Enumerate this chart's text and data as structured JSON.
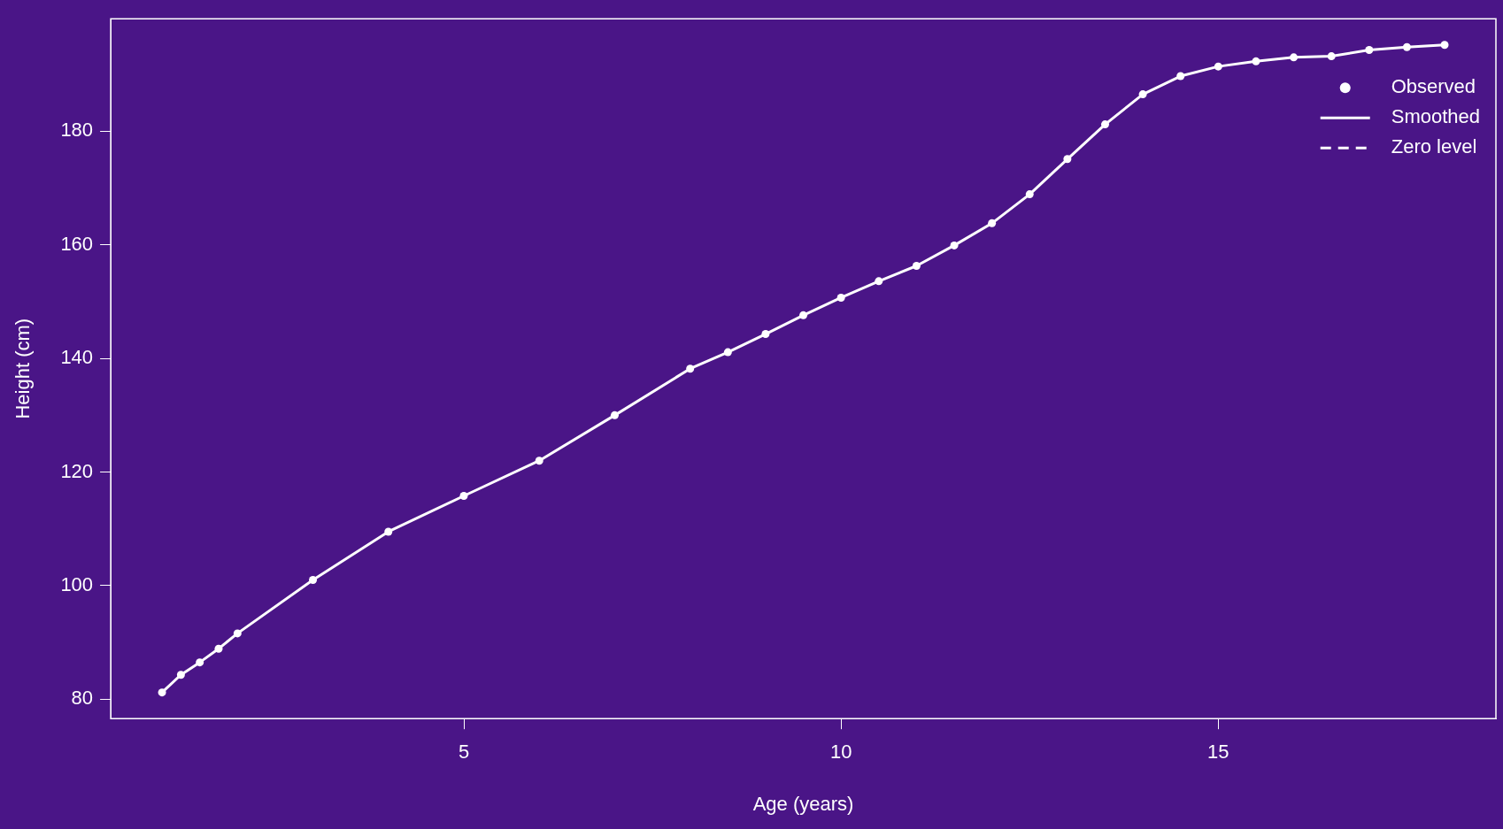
{
  "chart_data": {
    "type": "line",
    "xlabel": "Age (years)",
    "ylabel": "Height (cm)",
    "x": [
      1,
      1.25,
      1.5,
      1.75,
      2,
      3,
      4,
      5,
      6,
      7,
      8,
      8.5,
      9,
      9.5,
      10,
      10.5,
      11,
      11.5,
      12,
      12.5,
      13,
      13.5,
      14,
      14.5,
      15,
      15.5,
      16,
      16.5,
      17,
      17.5,
      18
    ],
    "series": [
      {
        "name": "Observed",
        "type": "scatter",
        "marker": "circle",
        "color": "#ffffff",
        "values": [
          81.2,
          84.3,
          86.5,
          88.9,
          91.6,
          101.0,
          109.5,
          115.8,
          122.0,
          130.0,
          138.2,
          141.1,
          144.3,
          147.6,
          150.7,
          153.6,
          156.3,
          159.9,
          163.8,
          168.9,
          175.1,
          181.2,
          186.5,
          189.7,
          191.4,
          192.3,
          193.0,
          193.2,
          194.3,
          194.8,
          195.2
        ]
      },
      {
        "name": "Smoothed",
        "line_style": "solid",
        "color": "#ffffff",
        "values": [
          81.2,
          84.3,
          86.5,
          88.9,
          91.6,
          101.0,
          109.5,
          115.8,
          122.0,
          130.0,
          138.2,
          141.1,
          144.3,
          147.6,
          150.7,
          153.6,
          156.3,
          159.9,
          163.8,
          168.9,
          175.1,
          181.2,
          186.5,
          189.7,
          191.4,
          192.3,
          193.0,
          193.2,
          194.3,
          194.8,
          195.2
        ]
      },
      {
        "name": "Zero level",
        "line_style": "dashed",
        "color": "#ffffff",
        "values": [
          null,
          null,
          null,
          null,
          null,
          null,
          null,
          null,
          null,
          null,
          null,
          null,
          null,
          null,
          null,
          null,
          null,
          null,
          null,
          null,
          null,
          null,
          null,
          null,
          null,
          null,
          null,
          null,
          null,
          null,
          null
        ]
      }
    ],
    "xlim": [
      0.32,
      18.68
    ],
    "xticks": [
      5,
      10,
      15
    ],
    "ylim": [
      76.6,
      199.8
    ],
    "yticks": [
      80,
      100,
      120,
      140,
      160,
      180
    ],
    "grid": false,
    "legend": "top right"
  }
}
